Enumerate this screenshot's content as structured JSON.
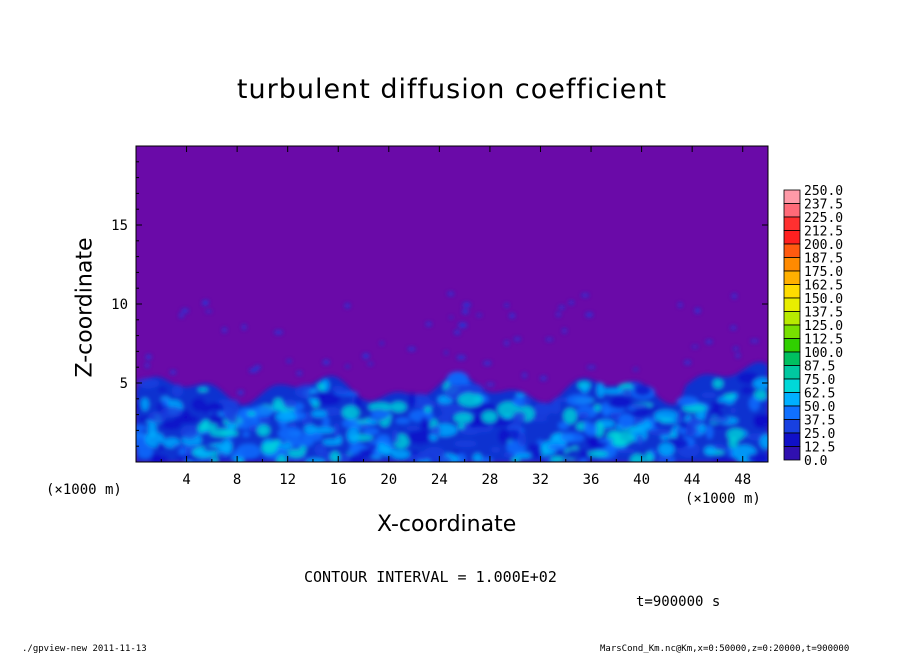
{
  "chart_data": {
    "type": "heatmap",
    "title": "turbulent diffusion coefficient",
    "xlabel": "X-coordinate",
    "ylabel": "Z-coordinate",
    "x_unit": "(×1000 m)",
    "xlim": [
      0,
      50
    ],
    "ylim": [
      0,
      20
    ],
    "x_ticks": [
      "4",
      "8",
      "12",
      "16",
      "20",
      "24",
      "28",
      "32",
      "36",
      "40",
      "44",
      "48"
    ],
    "y_ticks": [
      "5",
      "10",
      "15"
    ],
    "colorbar": {
      "levels": [
        "250.0",
        "237.5",
        "225.0",
        "212.5",
        "200.0",
        "187.5",
        "175.0",
        "162.5",
        "150.0",
        "137.5",
        "125.0",
        "112.5",
        "100.0",
        "87.5",
        "75.0",
        "62.5",
        "50.0",
        "37.5",
        "25.0",
        "12.5",
        "0.0"
      ],
      "colors": [
        "#ff9aa8",
        "#ff6a78",
        "#ff3030",
        "#ff2020",
        "#ff5a10",
        "#ff8a00",
        "#ffb000",
        "#ffdc00",
        "#e8ee00",
        "#b8ea00",
        "#78e000",
        "#30d000",
        "#00c060",
        "#00c8a0",
        "#00d8d8",
        "#00b0ff",
        "#1070ff",
        "#1840e0",
        "#1010c8",
        "#3010b0",
        "#6a0aa8"
      ]
    },
    "contour_interval": "CONTOUR INTERVAL = 1.000E+02",
    "time_label": "t=900000 s",
    "footer_left": "./gpview-new 2011-11-13",
    "footer_right": "MarsCond_Km.nc@Km,x=0:50000,z=0:20000,t=900000"
  }
}
